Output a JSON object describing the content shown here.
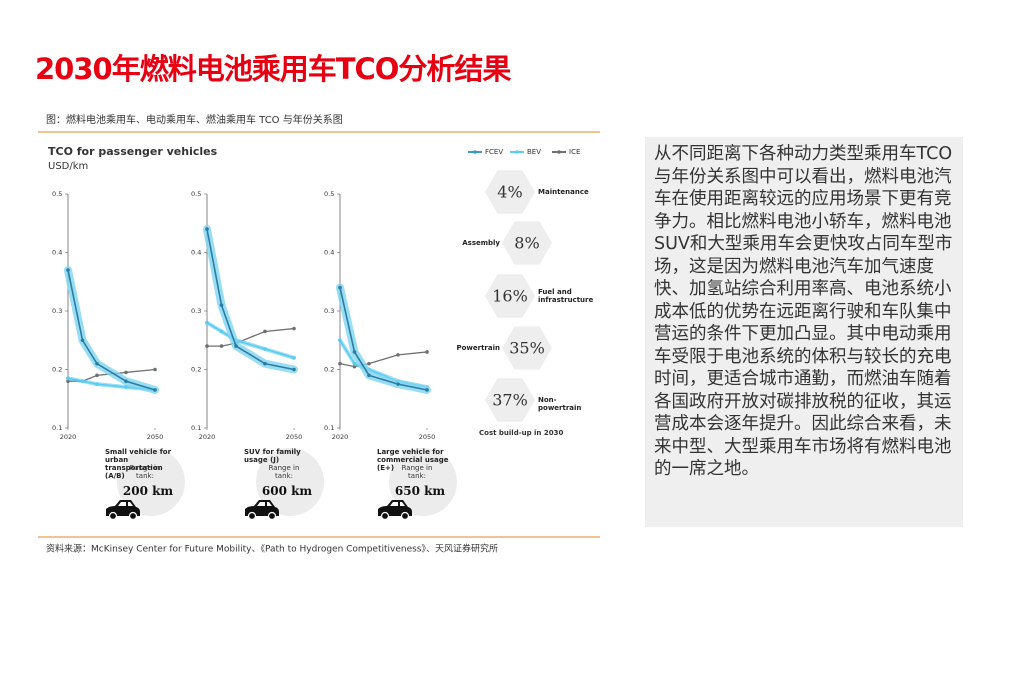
{
  "title": "2030年燃料电池乘用车TCO分析结果",
  "figure": {
    "caption": "图：燃料电池乘用车、电动乘用车、燃油乘用车 TCO 与年份关系图",
    "title": "TCO for passenger vehicles",
    "unit": "USD/km",
    "legend": [
      {
        "name": "FCEV",
        "color": "#3a9cc4"
      },
      {
        "name": "BEV",
        "color": "#5ccbf0"
      },
      {
        "name": "ICE",
        "color": "#707070"
      }
    ],
    "source": "资料来源：McKinsey Center for Future Mobility、《Path to Hydrogen Competitiveness》、天风证券研究所"
  },
  "chart_data": [
    {
      "type": "line",
      "x": [
        2020,
        2025,
        2030,
        2040,
        2050
      ],
      "xlim": [
        2020,
        2050
      ],
      "xticks": [
        2020,
        2050
      ],
      "ylim": [
        0.1,
        0.5
      ],
      "yticks": [
        0.1,
        0.2,
        0.3,
        0.4,
        0.5
      ],
      "series": [
        {
          "values": [
            0.37,
            0.25,
            0.21,
            0.18,
            0.165
          ]
        },
        {
          "values": [
            0.185,
            0.18,
            0.175,
            0.17,
            0.165
          ]
        },
        {
          "values": [
            0.18,
            0.18,
            0.19,
            0.195,
            0.2
          ]
        }
      ],
      "vehicle": "Small vehicle for urban transportation (A/B)",
      "range_label": "Range in tank:",
      "range": "200 km"
    },
    {
      "type": "line",
      "x": [
        2020,
        2025,
        2030,
        2040,
        2050
      ],
      "xlim": [
        2020,
        2050
      ],
      "xticks": [
        2020,
        2050
      ],
      "ylim": [
        0.1,
        0.5
      ],
      "yticks": [
        0.1,
        0.2,
        0.3,
        0.4,
        0.5
      ],
      "series": [
        {
          "values": [
            0.44,
            0.31,
            0.24,
            0.21,
            0.2
          ]
        },
        {
          "values": [
            0.28,
            0.265,
            0.25,
            0.235,
            0.22
          ]
        },
        {
          "values": [
            0.24,
            0.24,
            0.245,
            0.265,
            0.27
          ]
        }
      ],
      "vehicle": "SUV for family usage (J)",
      "range_label": "Range in tank:",
      "range": "600 km"
    },
    {
      "type": "line",
      "x": [
        2020,
        2025,
        2030,
        2040,
        2050
      ],
      "xlim": [
        2020,
        2050
      ],
      "xticks": [
        2020,
        2050
      ],
      "ylim": [
        0.1,
        0.5
      ],
      "yticks": [
        0.1,
        0.2,
        0.3,
        0.4,
        0.5
      ],
      "series": [
        {
          "values": [
            0.34,
            0.23,
            0.19,
            0.175,
            0.165
          ]
        },
        {
          "values": [
            0.25,
            0.21,
            0.2,
            0.18,
            0.17
          ]
        },
        {
          "values": [
            0.21,
            0.205,
            0.21,
            0.225,
            0.23
          ]
        }
      ],
      "vehicle": "Large vehicle for commercial usage (E+)",
      "range_label": "Range in tank:",
      "range": "650 km"
    },
    {
      "type": "hexagon",
      "title": "Cost build-up in 2030",
      "categories": [
        "Maintenance",
        "Assembly",
        "Fuel and infrastructure",
        "Powertrain",
        "Non-powertrain"
      ],
      "values": [
        4,
        8,
        16,
        35,
        37
      ],
      "value_labels": [
        "4%",
        "8%",
        "16%",
        "35%",
        "37%"
      ]
    }
  ],
  "text": "从不同距离下各种动力类型乘用车TCO与年份关系图中可以看出，燃料电池汽车在使用距离较远的应用场景下更有竞争力。相比燃料电池小轿车，燃料电池SUV和大型乘用车会更快攻占同车型市场，这是因为燃料电池汽车加气速度快、加氢站综合利用率高、电池系统小成本低的优势在远距离行驶和车队集中营运的条件下更加凸显。其中电动乘用车受限于电池系统的体积与较长的充电时间，更适合城市通勤，而燃油车随着各国政府开放对碳排放税的征收，其运营成本会逐年提升。因此综合来看，未来中型、大型乘用车市场将有燃料电池的一席之地。"
}
